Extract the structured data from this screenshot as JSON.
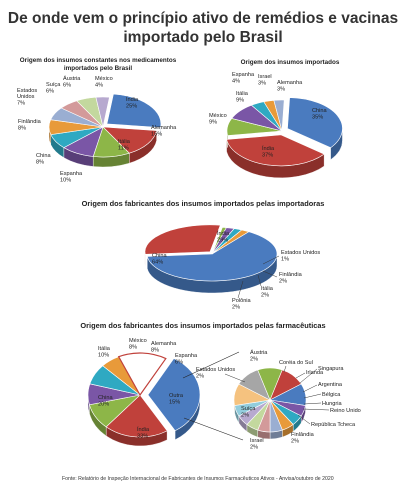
{
  "title_line1": "De onde vem o princípio ativo de remédios e vacinas",
  "title_line2": "importado pelo Brasil",
  "chart3_title": "Origem dos fabricantes dos insumos importados pelas importadoras",
  "chart4_title": "Origem dos fabricantes dos insumos importados pelas farmacêuticas",
  "source": "Fonte: Relatório de Inspeção Internacional de Fabricantes de Insumos Farmacêuticos Ativos - Anvisa/outubro de 2020",
  "chart_data": [
    {
      "type": "pie",
      "title": "Origem dos insumos constantes nos medicamentos importados pelo Brasil",
      "slices": [
        {
          "label": "Índia",
          "value": 25,
          "color": "#4a7bbf"
        },
        {
          "label": "Alemanha",
          "value": 15,
          "color": "#c0413b"
        },
        {
          "label": "Itália",
          "value": 11,
          "color": "#8db648"
        },
        {
          "label": "Espanha",
          "value": 10,
          "color": "#7a56a6"
        },
        {
          "label": "China",
          "value": 8,
          "color": "#2fa9c2"
        },
        {
          "label": "Finlândia",
          "value": 8,
          "color": "#e89a3a"
        },
        {
          "label": "Estados Unidos",
          "value": 7,
          "color": "#9aaed2"
        },
        {
          "label": "Suíça",
          "value": 6,
          "color": "#d39a9a"
        },
        {
          "label": "Áustria",
          "value": 6,
          "color": "#c3d89e"
        },
        {
          "label": "México",
          "value": 4,
          "color": "#b7a9cf"
        }
      ]
    },
    {
      "type": "pie",
      "title": "Origem dos insumos importados",
      "slices": [
        {
          "label": "China",
          "value": 35,
          "color": "#4a7bbf"
        },
        {
          "label": "Índia",
          "value": 37,
          "color": "#c0413b"
        },
        {
          "label": "México",
          "value": 9,
          "color": "#8db648"
        },
        {
          "label": "Itália",
          "value": 9,
          "color": "#7a56a6"
        },
        {
          "label": "Espanha",
          "value": 4,
          "color": "#2fa9c2"
        },
        {
          "label": "Israel",
          "value": 3,
          "color": "#e89a3a"
        },
        {
          "label": "Alemanha",
          "value": 3,
          "color": "#9aaed2"
        }
      ]
    },
    {
      "type": "pie",
      "title": "Origem dos fabricantes dos insumos importados pelas importadoras",
      "slices": [
        {
          "label": "China",
          "value": 64,
          "color": "#4a7bbf"
        },
        {
          "label": "Índia",
          "value": 29,
          "color": "#c0413b"
        },
        {
          "label": "Estados Unidos",
          "value": 1,
          "color": "#8db648"
        },
        {
          "label": "Finlândia",
          "value": 2,
          "color": "#7a56a6"
        },
        {
          "label": "Itália",
          "value": 2,
          "color": "#2fa9c2"
        },
        {
          "label": "Polônia",
          "value": 2,
          "color": "#e89a3a"
        }
      ]
    },
    {
      "type": "pie",
      "title": "Origem dos fabricantes dos insumos importados pelas farmacêuticas",
      "slices": [
        {
          "label": "Índia",
          "value": 33,
          "color": "#4a7bbf"
        },
        {
          "label": "China",
          "value": 20,
          "color": "#c0413b"
        },
        {
          "label": "Itália",
          "value": 10,
          "color": "#8db648"
        },
        {
          "label": "México",
          "value": 8,
          "color": "#7a56a6"
        },
        {
          "label": "Alemanha",
          "value": 8,
          "color": "#2fa9c2"
        },
        {
          "label": "Espanha",
          "value": 6,
          "color": "#e89a3a"
        },
        {
          "label": "Outra",
          "value": 15,
          "color": "#ffffff"
        }
      ],
      "breakdown_of": "Outra",
      "breakdown": [
        {
          "label": "Suíça",
          "value": 2,
          "color": "#8db648"
        },
        {
          "label": "Israel",
          "value": 2,
          "color": "#c0413b"
        },
        {
          "label": "Finlândia",
          "value": 2,
          "color": "#4a7bbf"
        },
        {
          "label": "República Tcheca",
          "value": null,
          "color": "#7a56a6"
        },
        {
          "label": "Reino Unido",
          "value": null,
          "color": "#2fa9c2"
        },
        {
          "label": "Hungria",
          "value": null,
          "color": "#e89a3a"
        },
        {
          "label": "Bélgica",
          "value": null,
          "color": "#9aaed2"
        },
        {
          "label": "Argentina",
          "value": null,
          "color": "#d39a9a"
        },
        {
          "label": "Singapura",
          "value": null,
          "color": "#c3d89e"
        },
        {
          "label": "Irlanda",
          "value": null,
          "color": "#b7a9cf"
        },
        {
          "label": "Coréia do Sul",
          "value": null,
          "color": "#93cddd"
        },
        {
          "label": "Estados Unidos",
          "value": 2,
          "color": "#f5c27f"
        },
        {
          "label": "Áustria",
          "value": 2,
          "color": "#a6a6a6"
        }
      ]
    }
  ]
}
